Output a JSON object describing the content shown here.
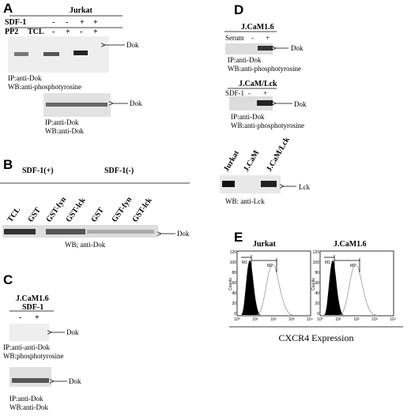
{
  "panel_a": {
    "label": "A",
    "cell": "Jurkat",
    "row1": {
      "name": "SDF-1",
      "signs": [
        "-",
        "-",
        "+",
        "+"
      ]
    },
    "row2": {
      "name": "PP2",
      "lane": "TCL",
      "signs": [
        "-",
        "+",
        "-",
        "+"
      ]
    },
    "blot1": {
      "target": "Dok",
      "ip": "IP:anti-Dok",
      "wb": "WB:anti-phosphotyrosine"
    },
    "blot2": {
      "target": "Dok",
      "ip": "IP:anti-Dok",
      "wb": "WB:anti-Dok"
    }
  },
  "panel_b": {
    "label": "B",
    "group1": "SDF-1(+)",
    "group2": "SDF-1(-)",
    "lanes": [
      "TCL",
      "GST",
      "GST-fyn",
      "GST-lck",
      "GST",
      "GST-fyn",
      "GST-lck"
    ],
    "target": "Dok",
    "wb": "WB; anti-Dok"
  },
  "panel_c": {
    "label": "C",
    "cell": "J.CaM1.6",
    "treatment": "SDF-1",
    "signs": [
      "-",
      "+"
    ],
    "blot1": {
      "target": "Dok",
      "ip": "IP:anti-anti-Dok",
      "wb": "WB:phosphotyrosine"
    },
    "blot2": {
      "target": "Dok",
      "ip": "IP:anti-Dok",
      "wb": "WB:anti-Dok"
    }
  },
  "panel_d": {
    "label": "D",
    "blot1": {
      "cell": "J.CaM1.6",
      "treatment": "Serum",
      "signs": [
        "-",
        "+"
      ],
      "target": "Dok",
      "ip": "IP:anti-Dok",
      "wb": "WB:anti-phosphotyrosine"
    },
    "blot2": {
      "cell": "J.CaM/Lck",
      "treatment": "SDF-1",
      "signs": [
        "-",
        "+"
      ],
      "target": "Dok",
      "ip": "IP:anti-Dok",
      "wb": "WB:anti-phosphotyrosine"
    },
    "blot3": {
      "lanes": [
        "Jurkat",
        "J.CaM",
        "J.CaM/Lck"
      ],
      "target": "Lck",
      "wb": "WB: anti-Lck"
    }
  },
  "panel_e": {
    "label": "E",
    "plots": [
      {
        "title": "Jurkat"
      },
      {
        "title": "J.CaM1.6"
      }
    ],
    "yaxis": "Counts",
    "yticks": [
      "0",
      "20",
      "40",
      "60",
      "80",
      "100",
      "120"
    ],
    "xticks": [
      "10⁰",
      "10¹",
      "10²",
      "10³",
      "10⁴"
    ],
    "markers": [
      "M1",
      "M2"
    ],
    "xaxis": "CXCR4 Expression"
  }
}
